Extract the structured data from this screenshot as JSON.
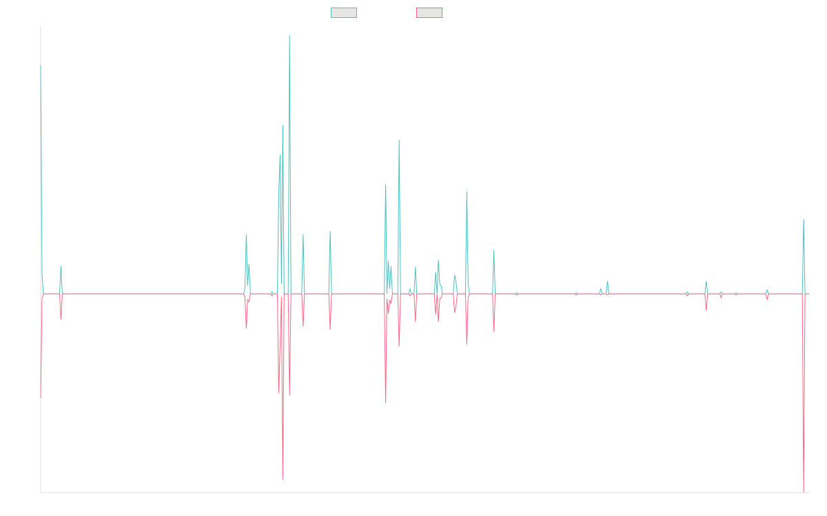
{
  "chart_data": {
    "type": "line",
    "title": "",
    "xlabel": "",
    "ylabel": "",
    "grid": false,
    "legend_position": "top-center",
    "ylim": [
      -20,
      27
    ],
    "series": [
      {
        "color": "#4BC0C0",
        "points": [
          [
            0,
            23
          ],
          [
            1,
            2
          ],
          [
            2,
            0
          ],
          [
            14,
            0
          ],
          [
            15,
            2.8
          ],
          [
            16,
            0
          ],
          [
            150,
            0
          ],
          [
            151,
            0.5
          ],
          [
            152,
            6
          ],
          [
            153,
            0.8
          ],
          [
            154,
            3
          ],
          [
            155,
            0
          ],
          [
            170,
            0
          ],
          [
            171,
            0.2
          ],
          [
            172,
            0
          ],
          [
            175,
            0
          ],
          [
            176,
            10
          ],
          [
            177,
            14
          ],
          [
            178,
            1
          ],
          [
            179,
            17
          ],
          [
            180,
            0
          ],
          [
            183,
            0
          ],
          [
            184,
            26
          ],
          [
            185,
            0
          ],
          [
            193,
            0
          ],
          [
            194,
            6
          ],
          [
            195,
            0
          ],
          [
            213,
            0
          ],
          [
            214,
            6.3
          ],
          [
            215,
            0
          ],
          [
            254,
            0
          ],
          [
            255,
            11
          ],
          [
            256,
            0
          ],
          [
            257,
            3.3
          ],
          [
            258,
            0.5
          ],
          [
            259,
            2.8
          ],
          [
            260,
            0
          ],
          [
            264,
            0
          ],
          [
            265,
            15.5
          ],
          [
            266,
            0
          ],
          [
            272,
            0
          ],
          [
            273,
            0.5
          ],
          [
            274,
            0
          ],
          [
            276,
            0
          ],
          [
            277,
            2.7
          ],
          [
            278,
            0
          ],
          [
            291,
            0
          ],
          [
            292,
            2.2
          ],
          [
            293,
            0
          ],
          [
            294,
            3.4
          ],
          [
            295,
            1
          ],
          [
            296,
            0.8
          ],
          [
            297,
            0
          ],
          [
            305,
            0
          ],
          [
            306,
            1.9
          ],
          [
            307,
            1.3
          ],
          [
            308,
            0
          ],
          [
            314,
            0
          ],
          [
            315,
            10.3
          ],
          [
            316,
            1
          ],
          [
            317,
            0
          ],
          [
            334,
            0
          ],
          [
            335,
            4.4
          ],
          [
            336,
            0
          ],
          [
            351,
            0
          ],
          [
            352,
            0.1
          ],
          [
            353,
            0
          ],
          [
            395,
            0
          ],
          [
            396,
            0.1
          ],
          [
            397,
            0
          ],
          [
            413,
            0
          ],
          [
            414,
            0.5
          ],
          [
            415,
            0
          ],
          [
            418,
            0
          ],
          [
            419,
            1.3
          ],
          [
            420,
            0
          ],
          [
            477,
            0
          ],
          [
            478,
            0.2
          ],
          [
            479,
            0
          ],
          [
            491,
            0
          ],
          [
            492,
            1.3
          ],
          [
            493,
            0
          ],
          [
            502,
            0
          ],
          [
            503,
            0.2
          ],
          [
            504,
            0
          ],
          [
            513,
            0
          ],
          [
            514,
            0.1
          ],
          [
            515,
            0
          ],
          [
            536,
            0
          ],
          [
            537,
            0.4
          ],
          [
            538,
            0
          ],
          [
            563,
            0
          ],
          [
            564,
            7.5
          ],
          [
            565,
            0
          ],
          [
            568,
            0
          ]
        ]
      },
      {
        "color": "#FF6384",
        "points": [
          [
            0,
            -10.5
          ],
          [
            1,
            -0.5
          ],
          [
            2,
            0
          ],
          [
            14,
            0
          ],
          [
            15,
            -2.6
          ],
          [
            16,
            0
          ],
          [
            150,
            0
          ],
          [
            151,
            -0.3
          ],
          [
            152,
            -3.5
          ],
          [
            153,
            -0.6
          ],
          [
            154,
            -0.8
          ],
          [
            155,
            0
          ],
          [
            170,
            0
          ],
          [
            171,
            -0.2
          ],
          [
            172,
            0
          ],
          [
            175,
            0
          ],
          [
            176,
            -10
          ],
          [
            177,
            -5
          ],
          [
            178,
            -0.3
          ],
          [
            179,
            -18.7
          ],
          [
            180,
            0
          ],
          [
            183,
            0
          ],
          [
            184,
            -10.2
          ],
          [
            185,
            0
          ],
          [
            193,
            0
          ],
          [
            194,
            -3.3
          ],
          [
            195,
            0
          ],
          [
            213,
            0
          ],
          [
            214,
            -3.6
          ],
          [
            215,
            0
          ],
          [
            254,
            0
          ],
          [
            255,
            -11
          ],
          [
            256,
            -0.5
          ],
          [
            257,
            -2
          ],
          [
            258,
            -0.6
          ],
          [
            259,
            -1
          ],
          [
            260,
            0
          ],
          [
            264,
            0
          ],
          [
            265,
            -5.3
          ],
          [
            266,
            0
          ],
          [
            272,
            0
          ],
          [
            273,
            -0.2
          ],
          [
            274,
            0
          ],
          [
            276,
            0
          ],
          [
            277,
            -2.8
          ],
          [
            278,
            0
          ],
          [
            291,
            0
          ],
          [
            292,
            -2.1
          ],
          [
            293,
            0
          ],
          [
            294,
            -2.8
          ],
          [
            295,
            -0.5
          ],
          [
            296,
            -0.4
          ],
          [
            297,
            0
          ],
          [
            305,
            0
          ],
          [
            306,
            -1.9
          ],
          [
            307,
            -1.3
          ],
          [
            308,
            0
          ],
          [
            314,
            0
          ],
          [
            315,
            -5.1
          ],
          [
            316,
            -0.3
          ],
          [
            317,
            0
          ],
          [
            334,
            0
          ],
          [
            335,
            -3.8
          ],
          [
            336,
            0
          ],
          [
            351,
            0
          ],
          [
            352,
            -0.1
          ],
          [
            353,
            0
          ],
          [
            395,
            0
          ],
          [
            396,
            -0.1
          ],
          [
            397,
            0
          ],
          [
            413,
            0
          ],
          [
            414,
            -0.1
          ],
          [
            415,
            0
          ],
          [
            418,
            0
          ],
          [
            419,
            -0.1
          ],
          [
            420,
            0
          ],
          [
            477,
            0
          ],
          [
            478,
            -0.2
          ],
          [
            479,
            0
          ],
          [
            491,
            0
          ],
          [
            492,
            -1.7
          ],
          [
            493,
            0
          ],
          [
            502,
            0
          ],
          [
            503,
            -0.4
          ],
          [
            504,
            0
          ],
          [
            513,
            0
          ],
          [
            514,
            -0.1
          ],
          [
            515,
            0
          ],
          [
            536,
            0
          ],
          [
            537,
            -0.6
          ],
          [
            538,
            0
          ],
          [
            563,
            0
          ],
          [
            564,
            -20
          ],
          [
            565,
            0
          ],
          [
            568,
            0
          ]
        ]
      }
    ]
  }
}
